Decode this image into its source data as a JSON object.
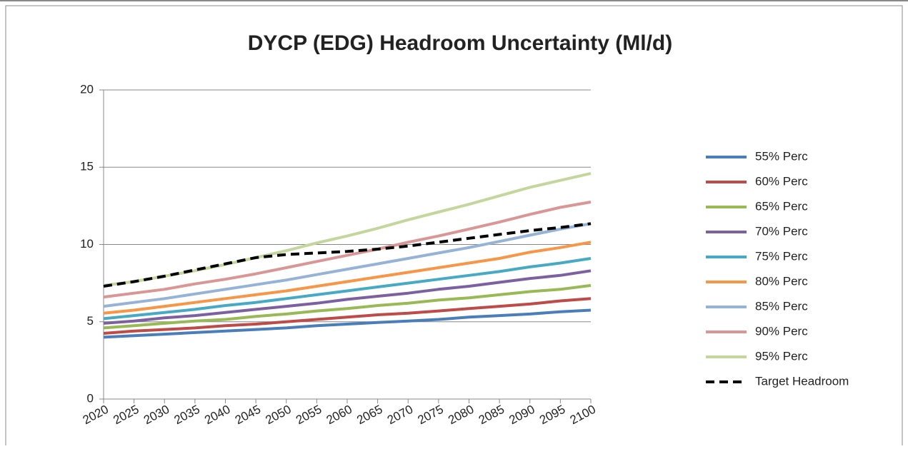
{
  "chart_data": {
    "type": "line",
    "title": "DYCP (EDG) Headroom Uncertainty (Ml/d)",
    "x": [
      2020,
      2025,
      2030,
      2035,
      2040,
      2045,
      2050,
      2055,
      2060,
      2065,
      2070,
      2075,
      2080,
      2085,
      2090,
      2095,
      2100
    ],
    "xlim": [
      2020,
      2100
    ],
    "xticks": [
      2020,
      2025,
      2030,
      2035,
      2040,
      2045,
      2050,
      2055,
      2060,
      2065,
      2070,
      2075,
      2080,
      2085,
      2090,
      2095,
      2100
    ],
    "ylim": [
      0,
      20
    ],
    "yticks": [
      0,
      5,
      10,
      15,
      20
    ],
    "grid": true,
    "legend": "right",
    "series": [
      {
        "name": "55% Perc",
        "color": "#4a7ebb",
        "values": [
          4.0,
          4.1,
          4.2,
          4.3,
          4.4,
          4.5,
          4.6,
          4.75,
          4.85,
          4.95,
          5.05,
          5.15,
          5.3,
          5.4,
          5.5,
          5.65,
          5.75
        ]
      },
      {
        "name": "60% Perc",
        "color": "#be4b48",
        "values": [
          4.25,
          4.4,
          4.5,
          4.6,
          4.75,
          4.85,
          5.0,
          5.15,
          5.3,
          5.45,
          5.55,
          5.7,
          5.85,
          6.0,
          6.15,
          6.35,
          6.5
        ]
      },
      {
        "name": "65% Perc",
        "color": "#98b954",
        "values": [
          4.6,
          4.75,
          4.9,
          5.05,
          5.15,
          5.35,
          5.5,
          5.7,
          5.85,
          6.05,
          6.2,
          6.4,
          6.55,
          6.75,
          6.95,
          7.1,
          7.35
        ]
      },
      {
        "name": "70% Perc",
        "color": "#7d60a0",
        "values": [
          4.9,
          5.05,
          5.25,
          5.4,
          5.6,
          5.8,
          6.0,
          6.2,
          6.45,
          6.65,
          6.85,
          7.1,
          7.3,
          7.55,
          7.8,
          8.0,
          8.3
        ]
      },
      {
        "name": "75% Perc",
        "color": "#46aac5",
        "values": [
          5.2,
          5.4,
          5.6,
          5.8,
          6.05,
          6.25,
          6.5,
          6.75,
          7.0,
          7.25,
          7.5,
          7.75,
          8.0,
          8.25,
          8.55,
          8.8,
          9.1
        ]
      },
      {
        "name": "80% Perc",
        "color": "#f79646",
        "values": [
          5.55,
          5.75,
          6.0,
          6.25,
          6.5,
          6.75,
          7.0,
          7.3,
          7.6,
          7.9,
          8.2,
          8.5,
          8.8,
          9.1,
          9.5,
          9.8,
          10.15
        ]
      },
      {
        "name": "85% Perc",
        "color": "#95b3d7",
        "values": [
          6.0,
          6.25,
          6.5,
          6.8,
          7.1,
          7.4,
          7.7,
          8.05,
          8.4,
          8.75,
          9.1,
          9.45,
          9.8,
          10.2,
          10.6,
          11.0,
          11.35
        ]
      },
      {
        "name": "90% Perc",
        "color": "#d99694",
        "values": [
          6.6,
          6.85,
          7.1,
          7.45,
          7.75,
          8.1,
          8.5,
          8.9,
          9.3,
          9.7,
          10.15,
          10.55,
          11.0,
          11.45,
          11.95,
          12.4,
          12.75
        ]
      },
      {
        "name": "95% Perc",
        "color": "#c3d69b",
        "values": [
          7.35,
          7.6,
          7.95,
          8.3,
          8.7,
          9.15,
          9.6,
          10.1,
          10.55,
          11.05,
          11.6,
          12.1,
          12.6,
          13.15,
          13.7,
          14.15,
          14.6
        ]
      },
      {
        "name": "Target Headroom",
        "color": "#000000",
        "style": "dashed",
        "values": [
          7.3,
          7.6,
          7.95,
          8.35,
          8.75,
          9.15,
          9.35,
          9.45,
          9.55,
          9.7,
          9.9,
          10.15,
          10.4,
          10.65,
          10.9,
          11.1,
          11.35
        ]
      }
    ]
  }
}
